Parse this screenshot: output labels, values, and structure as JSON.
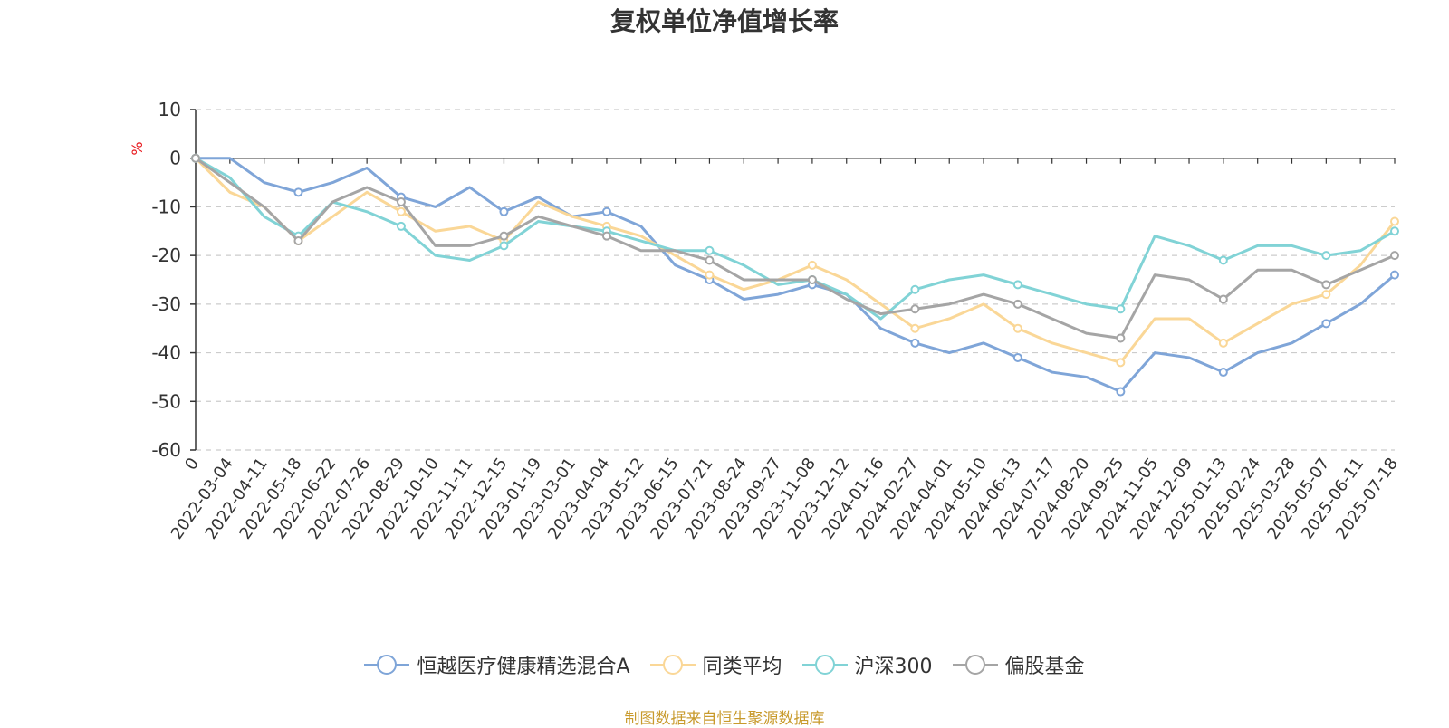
{
  "chart_data": {
    "type": "line",
    "title": "复权单位净值增长率",
    "ylabel": "%",
    "ylim": [
      -60,
      10
    ],
    "yticks": [
      10,
      0,
      -10,
      -20,
      -30,
      -40,
      -50,
      -60
    ],
    "x_labels": [
      "0",
      "2022-03-04",
      "2022-04-11",
      "2022-05-18",
      "2022-06-22",
      "2022-07-26",
      "2022-08-29",
      "2022-10-10",
      "2022-11-11",
      "2022-12-15",
      "2023-01-19",
      "2023-03-01",
      "2023-04-04",
      "2023-05-12",
      "2023-06-15",
      "2023-07-21",
      "2023-08-24",
      "2023-09-27",
      "2023-11-08",
      "2023-12-12",
      "2024-01-16",
      "2024-02-27",
      "2024-04-01",
      "2024-05-10",
      "2024-06-13",
      "2024-07-17",
      "2024-08-20",
      "2024-09-25",
      "2024-11-05",
      "2024-12-09",
      "2025-01-13",
      "2025-02-24",
      "2025-03-28",
      "2025-05-07",
      "2025-06-11",
      "2025-07-18"
    ],
    "grid": true,
    "legend_position": "bottom",
    "series": [
      {
        "name": "恒越医疗健康精选混合A",
        "color": "#7fa5d8",
        "values": [
          0,
          0,
          -5,
          -7,
          -5,
          -2,
          -8,
          -10,
          -6,
          -11,
          -8,
          -12,
          -11,
          -14,
          -22,
          -25,
          -29,
          -28,
          -26,
          -28,
          -35,
          -38,
          -40,
          -38,
          -41,
          -44,
          -45,
          -48,
          -40,
          -41,
          -44,
          -40,
          -38,
          -34,
          -30,
          -24
        ]
      },
      {
        "name": "同类平均",
        "color": "#fad797",
        "values": [
          0,
          -7,
          -10,
          -17,
          -12,
          -7,
          -11,
          -15,
          -14,
          -17,
          -9,
          -12,
          -14,
          -16,
          -20,
          -24,
          -27,
          -25,
          -22,
          -25,
          -30,
          -35,
          -33,
          -30,
          -35,
          -38,
          -40,
          -42,
          -33,
          -33,
          -38,
          -34,
          -30,
          -28,
          -22,
          -13
        ]
      },
      {
        "name": "沪深300",
        "color": "#81d3d6",
        "values": [
          0,
          -4,
          -12,
          -16,
          -9,
          -11,
          -14,
          -20,
          -21,
          -18,
          -13,
          -14,
          -15,
          -17,
          -19,
          -19,
          -22,
          -26,
          -25,
          -28,
          -33,
          -27,
          -25,
          -24,
          -26,
          -28,
          -30,
          -31,
          -16,
          -18,
          -21,
          -18,
          -18,
          -20,
          -19,
          -15
        ]
      },
      {
        "name": "偏股基金",
        "color": "#a5a5a5",
        "values": [
          0,
          -5,
          -10,
          -17,
          -9,
          -6,
          -9,
          -18,
          -18,
          -16,
          -12,
          -14,
          -16,
          -19,
          -19,
          -21,
          -25,
          -25,
          -25,
          -29,
          -32,
          -31,
          -30,
          -28,
          -30,
          -33,
          -36,
          -37,
          -24,
          -25,
          -29,
          -23,
          -23,
          -26,
          -23,
          -20
        ]
      }
    ]
  },
  "source_note": "制图数据来自恒生聚源数据库"
}
